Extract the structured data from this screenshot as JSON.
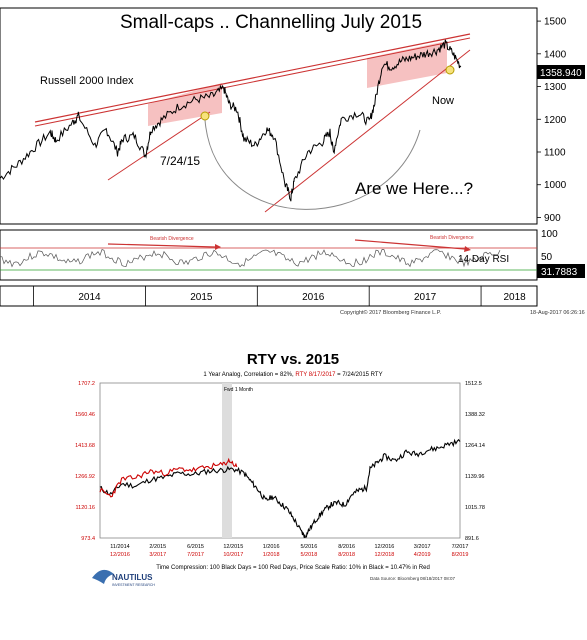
{
  "chart_data": [
    {
      "type": "line",
      "title": "Small-caps .. Channelling July 2015",
      "series_label": "Russell 2000 Index",
      "last_value_label": "1358.940",
      "annotations": {
        "date": "7/24/15",
        "now": "Now",
        "question": "Are we Here...?"
      },
      "x_ticks": [
        "2014",
        "2015",
        "2016",
        "2017",
        "2018"
      ],
      "y_ticks": [
        900,
        1000,
        1100,
        1200,
        1300,
        1400,
        1500
      ],
      "ylim": [
        880,
        1540
      ],
      "series": [
        {
          "name": "Russell 2000 Index",
          "points": [
            [
              2013.5,
              1020
            ],
            [
              2013.65,
              1060
            ],
            [
              2013.8,
              1110
            ],
            [
              2013.95,
              1160
            ],
            [
              2014.0,
              1135
            ],
            [
              2014.15,
              1190
            ],
            [
              2014.2,
              1210
            ],
            [
              2014.35,
              1120
            ],
            [
              2014.45,
              1170
            ],
            [
              2014.55,
              1100
            ],
            [
              2014.6,
              1140
            ],
            [
              2014.7,
              1150
            ],
            [
              2014.8,
              1090
            ],
            [
              2014.85,
              1170
            ],
            [
              2014.95,
              1200
            ],
            [
              2015.1,
              1240
            ],
            [
              2015.25,
              1260
            ],
            [
              2015.4,
              1270
            ],
            [
              2015.5,
              1295
            ],
            [
              2015.55,
              1245
            ],
            [
              2015.62,
              1230
            ],
            [
              2015.68,
              1140
            ],
            [
              2015.78,
              1120
            ],
            [
              2015.88,
              1170
            ],
            [
              2015.95,
              1150
            ],
            [
              2016.05,
              1000
            ],
            [
              2016.1,
              960
            ],
            [
              2016.13,
              1010
            ],
            [
              2016.25,
              1100
            ],
            [
              2016.38,
              1130
            ],
            [
              2016.45,
              1160
            ],
            [
              2016.48,
              1100
            ],
            [
              2016.55,
              1200
            ],
            [
              2016.7,
              1220
            ],
            [
              2016.8,
              1190
            ],
            [
              2016.85,
              1250
            ],
            [
              2016.92,
              1370
            ],
            [
              2017.0,
              1360
            ],
            [
              2017.1,
              1380
            ],
            [
              2017.2,
              1390
            ],
            [
              2017.3,
              1400
            ],
            [
              2017.4,
              1410
            ],
            [
              2017.48,
              1430
            ],
            [
              2017.55,
              1400
            ],
            [
              2017.62,
              1360
            ]
          ]
        }
      ],
      "rsi": {
        "label": "14 Day RSI",
        "last_value": "31.7883",
        "y_ticks": [
          50,
          100
        ],
        "divergence_label": "Bearish Divergence",
        "levels": [
          70,
          30
        ]
      },
      "footer": {
        "copyright": "Copyright© 2017 Bloomberg Finance L.P.",
        "timestamp": "18-Aug-2017 06:26:16"
      }
    },
    {
      "type": "line",
      "title": "RTY vs. 2015",
      "subtitle_black": "1 Year Analog, Correlation = 82%, ",
      "subtitle_red": "RTY 8/17/2017",
      "subtitle_end": " = 7/24/2015 RTY",
      "shade_label": "Fwd 1 Month",
      "left_axis_ticks": [
        "1707.2",
        "1560.46",
        "1413.68",
        "1266.92",
        "1120.16",
        "973.4"
      ],
      "right_axis_ticks": [
        "1512.5",
        "1388.32",
        "1264.14",
        "1139.96",
        "1015.78",
        "891.6"
      ],
      "x_ticks_black": [
        "11/2014",
        "2/2015",
        "6/2015",
        "12/2015",
        "1/2016",
        "5/2016",
        "8/2016",
        "12/2016",
        "3/2017",
        "7/2017"
      ],
      "x_ticks_red": [
        "12/2016",
        "3/2017",
        "7/2017",
        "10/2017",
        "1/2018",
        "5/2018",
        "8/2018",
        "12/2018",
        "4/2019",
        "8/2019"
      ],
      "series": [
        {
          "name": "RTY",
          "color": "#000000",
          "points": [
            [
              0.0,
              1210
            ],
            [
              0.03,
              1180
            ],
            [
              0.06,
              1230
            ],
            [
              0.1,
              1220
            ],
            [
              0.14,
              1250
            ],
            [
              0.18,
              1260
            ],
            [
              0.22,
              1280
            ],
            [
              0.26,
              1275
            ],
            [
              0.3,
              1290
            ],
            [
              0.34,
              1295
            ],
            [
              0.37,
              1300
            ],
            [
              0.4,
              1280
            ],
            [
              0.42,
              1240
            ],
            [
              0.44,
              1200
            ],
            [
              0.46,
              1150
            ],
            [
              0.48,
              1170
            ],
            [
              0.5,
              1140
            ],
            [
              0.52,
              1110
            ],
            [
              0.54,
              1060
            ],
            [
              0.56,
              1000
            ],
            [
              0.57,
              980
            ],
            [
              0.58,
              1010
            ],
            [
              0.6,
              1060
            ],
            [
              0.62,
              1100
            ],
            [
              0.64,
              1130
            ],
            [
              0.66,
              1140
            ],
            [
              0.68,
              1130
            ],
            [
              0.7,
              1180
            ],
            [
              0.72,
              1200
            ],
            [
              0.74,
              1210
            ],
            [
              0.75,
              1300
            ],
            [
              0.77,
              1330
            ],
            [
              0.79,
              1360
            ],
            [
              0.82,
              1340
            ],
            [
              0.85,
              1380
            ],
            [
              0.88,
              1370
            ],
            [
              0.91,
              1390
            ],
            [
              0.94,
              1400
            ],
            [
              0.97,
              1420
            ],
            [
              1.0,
              1430
            ]
          ]
        },
        {
          "name": "2015",
          "color": "#cc0000",
          "points": [
            [
              0.0,
              1200
            ],
            [
              0.03,
              1170
            ],
            [
              0.06,
              1250
            ],
            [
              0.1,
              1260
            ],
            [
              0.14,
              1290
            ],
            [
              0.18,
              1280
            ],
            [
              0.22,
              1300
            ],
            [
              0.26,
              1295
            ],
            [
              0.3,
              1310
            ],
            [
              0.34,
              1320
            ],
            [
              0.36,
              1340
            ],
            [
              0.38,
              1310
            ]
          ]
        }
      ],
      "footer": {
        "logo": "NAUTILUS",
        "logo_sub": "INVESTMENT RESEARCH",
        "note": "Time Compression: 100 Black Days = 100 Red Days,  Price Scale Ratio: 10% in Black = 10.47% in Red",
        "source": "Data Source: Bloomberg",
        "date": "08/18/2017 08:07"
      }
    }
  ]
}
